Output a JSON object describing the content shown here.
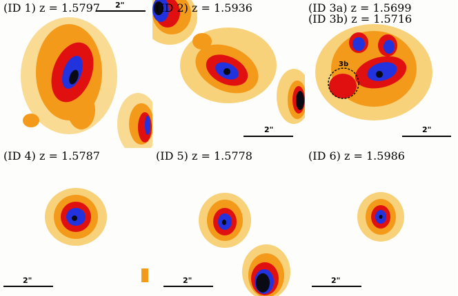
{
  "panels": [
    {
      "label": "(ID 1) z = 1.5797",
      "scale_label": "2\""
    },
    {
      "label": "(ID 2) z = 1.5936",
      "scale_label": "2\""
    },
    {
      "label": "(ID 3a) z = 1.5699",
      "label2": "(ID 3b) z = 1.5716",
      "scale_label": "2\"",
      "marker_label": "3b"
    },
    {
      "label": "(ID 4) z = 1.5787",
      "scale_label": "2\""
    },
    {
      "label": "(ID 5) z = 1.5778",
      "scale_label": "2\""
    },
    {
      "label": "(ID 6) z = 1.5986",
      "scale_label": "2\""
    }
  ],
  "colors": {
    "core": "#0a0a14",
    "inner": "#2233dd",
    "mid": "#e01010",
    "outer": "#f39a1a",
    "halo": "#f7d27a",
    "background": "#fdfdfb"
  }
}
